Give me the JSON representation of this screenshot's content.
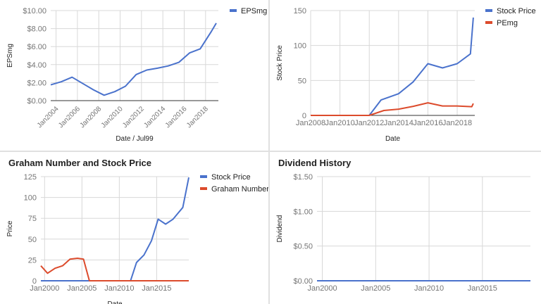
{
  "colors": {
    "blue": "#4a72cc",
    "red": "#dc4b2c",
    "grid": "#d8d8d8",
    "axis": "#333333",
    "tick": "#757575"
  },
  "panels": {
    "tl": {
      "title": ""
    },
    "tr": {
      "title": ""
    },
    "bl": {
      "title": "Graham Number and Stock Price"
    },
    "br": {
      "title": "Dividend History"
    }
  },
  "chart_data": [
    {
      "type": "line",
      "title": "",
      "xlabel": "Date / Jul99",
      "ylabel": "EPSmg",
      "xlim": [
        2003.5,
        2019.2
      ],
      "ylim": [
        0,
        10
      ],
      "x_ticks": [
        2004,
        2006,
        2008,
        2010,
        2012,
        2014,
        2016,
        2018
      ],
      "x_tick_labels": [
        "Jan2004",
        "Jan2006",
        "Jan2008",
        "Jan2010",
        "Jan2012",
        "Jan2014",
        "Jan2016",
        "Jan2018"
      ],
      "y_ticks": [
        0,
        2,
        4,
        6,
        8,
        10
      ],
      "y_tick_labels": [
        "$0.00",
        "$2.00",
        "$4.00",
        "$6.00",
        "$8.00",
        "$10.00"
      ],
      "grid": true,
      "legend": "right",
      "series": [
        {
          "name": "EPSmg",
          "color": "#4a72cc",
          "x": [
            2003.5,
            2004.5,
            2005.5,
            2006.5,
            2007.5,
            2008.5,
            2009.5,
            2010.5,
            2011.5,
            2012.5,
            2013.5,
            2014.5,
            2015.5,
            2016.5,
            2017.5,
            2018.5,
            2019.0
          ],
          "y": [
            1.75,
            2.1,
            2.6,
            1.9,
            1.2,
            0.6,
            1.0,
            1.6,
            2.9,
            3.4,
            3.6,
            3.85,
            4.25,
            5.3,
            5.75,
            7.6,
            8.6
          ]
        }
      ]
    },
    {
      "type": "line",
      "title": "",
      "xlabel": "Date",
      "ylabel": "Stock Price",
      "xlim": [
        2008,
        2019.2
      ],
      "ylim": [
        0,
        150
      ],
      "x_ticks": [
        2008,
        2010,
        2012,
        2014,
        2016,
        2018
      ],
      "x_tick_labels": [
        "Jan2008",
        "Jan2010",
        "Jan2012",
        "Jan2014",
        "Jan2016",
        "Jan2018"
      ],
      "y_ticks": [
        0,
        50,
        100,
        150
      ],
      "y_tick_labels": [
        "0",
        "50",
        "100",
        "150"
      ],
      "grid": true,
      "legend": "right",
      "series": [
        {
          "name": "Stock Price",
          "color": "#4a72cc",
          "x": [
            2008,
            2012.0,
            2012.8,
            2014.0,
            2015.0,
            2016.0,
            2017.0,
            2018.0,
            2018.9,
            2019.1
          ],
          "y": [
            0,
            0,
            22,
            31,
            48,
            74,
            68,
            74,
            88,
            140
          ]
        },
        {
          "name": "PEmg",
          "color": "#dc4b2c",
          "x": [
            2008,
            2012.0,
            2013.0,
            2014.0,
            2015.0,
            2016.0,
            2017.0,
            2018.0,
            2019.0,
            2019.1
          ],
          "y": [
            0,
            0,
            7,
            9,
            13,
            18,
            13.5,
            13.5,
            12.5,
            17
          ]
        }
      ]
    },
    {
      "type": "line",
      "title": "Graham Number and Stock Price",
      "xlabel": "Date",
      "ylabel": "Price",
      "xlim": [
        1999.5,
        2019.3
      ],
      "ylim": [
        0,
        125
      ],
      "x_ticks": [
        2000,
        2005,
        2010,
        2015
      ],
      "x_tick_labels": [
        "Jan2000",
        "Jan2005",
        "Jan2010",
        "Jan2015"
      ],
      "y_ticks": [
        0,
        25,
        50,
        75,
        100,
        125
      ],
      "y_tick_labels": [
        "0",
        "25",
        "50",
        "75",
        "100",
        "125"
      ],
      "grid": true,
      "legend": "right",
      "series": [
        {
          "name": "Stock Price",
          "color": "#4a72cc",
          "x": [
            1999.5,
            2010.5,
            2011.5,
            2012.3,
            2013.3,
            2014.3,
            2015.2,
            2016.2,
            2017.2,
            2018.5,
            2019.3
          ],
          "y": [
            0,
            0,
            0,
            22,
            31,
            48,
            74,
            68,
            74,
            88,
            124
          ]
        },
        {
          "name": "Graham Number",
          "color": "#dc4b2c",
          "x": [
            1999.5,
            2000.4,
            2001.4,
            2002.4,
            2003.4,
            2004.4,
            2005.2,
            2006.0,
            2019.3
          ],
          "y": [
            18,
            9,
            15,
            18,
            26,
            27,
            26,
            0,
            0
          ]
        }
      ]
    },
    {
      "type": "line",
      "title": "Dividend History",
      "xlabel": "",
      "ylabel": "Dividend",
      "xlim": [
        1999.5,
        2019.5
      ],
      "ylim": [
        0,
        1.5
      ],
      "x_ticks": [
        2000,
        2005,
        2010,
        2015
      ],
      "x_tick_labels": [
        "Jan2000",
        "Jan2005",
        "Jan2010",
        "Jan2015"
      ],
      "y_ticks": [
        0,
        0.5,
        1.0,
        1.5
      ],
      "y_tick_labels": [
        "$0.00",
        "$0.50",
        "$1.00",
        "$1.50"
      ],
      "grid": true,
      "series": [
        {
          "name": "",
          "color": "#4a72cc",
          "x": [
            1999.5,
            2019.5
          ],
          "y": [
            0,
            0
          ]
        }
      ]
    }
  ]
}
